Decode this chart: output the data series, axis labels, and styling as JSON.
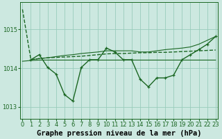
{
  "background_color": "#cce8e0",
  "grid_color": "#99ccbb",
  "line_color": "#1a6622",
  "xlabel": "Graphe pression niveau de la mer (hPa)",
  "ylim": [
    1012.7,
    1015.7
  ],
  "xlim": [
    -0.3,
    23.3
  ],
  "yticks": [
    1013,
    1014,
    1015
  ],
  "xticks": [
    0,
    1,
    2,
    3,
    4,
    5,
    6,
    7,
    8,
    9,
    10,
    11,
    12,
    13,
    14,
    15,
    16,
    17,
    18,
    19,
    20,
    21,
    22,
    23
  ],
  "series": [
    {
      "x": [
        0,
        1,
        2,
        3,
        4,
        5,
        6,
        7,
        8,
        9,
        10,
        11,
        12,
        13,
        14,
        15,
        16,
        17,
        18,
        19,
        20,
        21,
        22,
        23
      ],
      "y": [
        1015.52,
        1014.22,
        1014.25,
        1014.27,
        1014.28,
        1014.29,
        1014.3,
        1014.31,
        1014.33,
        1014.35,
        1014.37,
        1014.38,
        1014.38,
        1014.39,
        1014.4,
        1014.4,
        1014.41,
        1014.41,
        1014.42,
        1014.43,
        1014.44,
        1014.45,
        1014.46,
        1014.47
      ],
      "lw": 1.0,
      "linestyle": "dashed",
      "marker": null,
      "markersize": 0
    },
    {
      "x": [
        1,
        2,
        3,
        4,
        5,
        6,
        7,
        8,
        9,
        10,
        11,
        12,
        13,
        14,
        15,
        16,
        17,
        18,
        19,
        20,
        21,
        22,
        23
      ],
      "y": [
        1014.22,
        1014.35,
        1014.02,
        1013.85,
        1013.32,
        1013.15,
        1014.02,
        1014.22,
        1014.22,
        1014.52,
        1014.42,
        1014.22,
        1014.22,
        1013.72,
        1013.52,
        1013.75,
        1013.75,
        1013.82,
        1014.22,
        1014.35,
        1014.48,
        1014.62,
        1014.82
      ],
      "lw": 1.0,
      "linestyle": "solid",
      "marker": "+",
      "markersize": 3.5
    },
    {
      "x": [
        0,
        1,
        2,
        3,
        4,
        5,
        6,
        7,
        8,
        9,
        10,
        11,
        12,
        13,
        14,
        15,
        16,
        17,
        18,
        19,
        20,
        21,
        22,
        23
      ],
      "y": [
        1014.18,
        1014.2,
        1014.21,
        1014.21,
        1014.21,
        1014.21,
        1014.21,
        1014.21,
        1014.21,
        1014.21,
        1014.21,
        1014.21,
        1014.21,
        1014.21,
        1014.21,
        1014.21,
        1014.21,
        1014.21,
        1014.21,
        1014.21,
        1014.21,
        1014.21,
        1014.21,
        1014.21
      ],
      "lw": 0.8,
      "linestyle": "solid",
      "marker": null,
      "markersize": 0
    },
    {
      "x": [
        1,
        2,
        3,
        4,
        5,
        6,
        7,
        8,
        9,
        10,
        11,
        12,
        13,
        14,
        15,
        16,
        17,
        18,
        19,
        20,
        21,
        22,
        23
      ],
      "y": [
        1014.22,
        1014.25,
        1014.27,
        1014.3,
        1014.33,
        1014.35,
        1014.38,
        1014.4,
        1014.42,
        1014.45,
        1014.45,
        1014.45,
        1014.45,
        1014.42,
        1014.42,
        1014.45,
        1014.48,
        1014.5,
        1014.52,
        1014.55,
        1014.62,
        1014.72,
        1014.82
      ],
      "lw": 0.8,
      "linestyle": "solid",
      "marker": null,
      "markersize": 0
    }
  ],
  "title_fontsize": 7.5,
  "tick_fontsize": 6.0,
  "label_color": "#000000"
}
